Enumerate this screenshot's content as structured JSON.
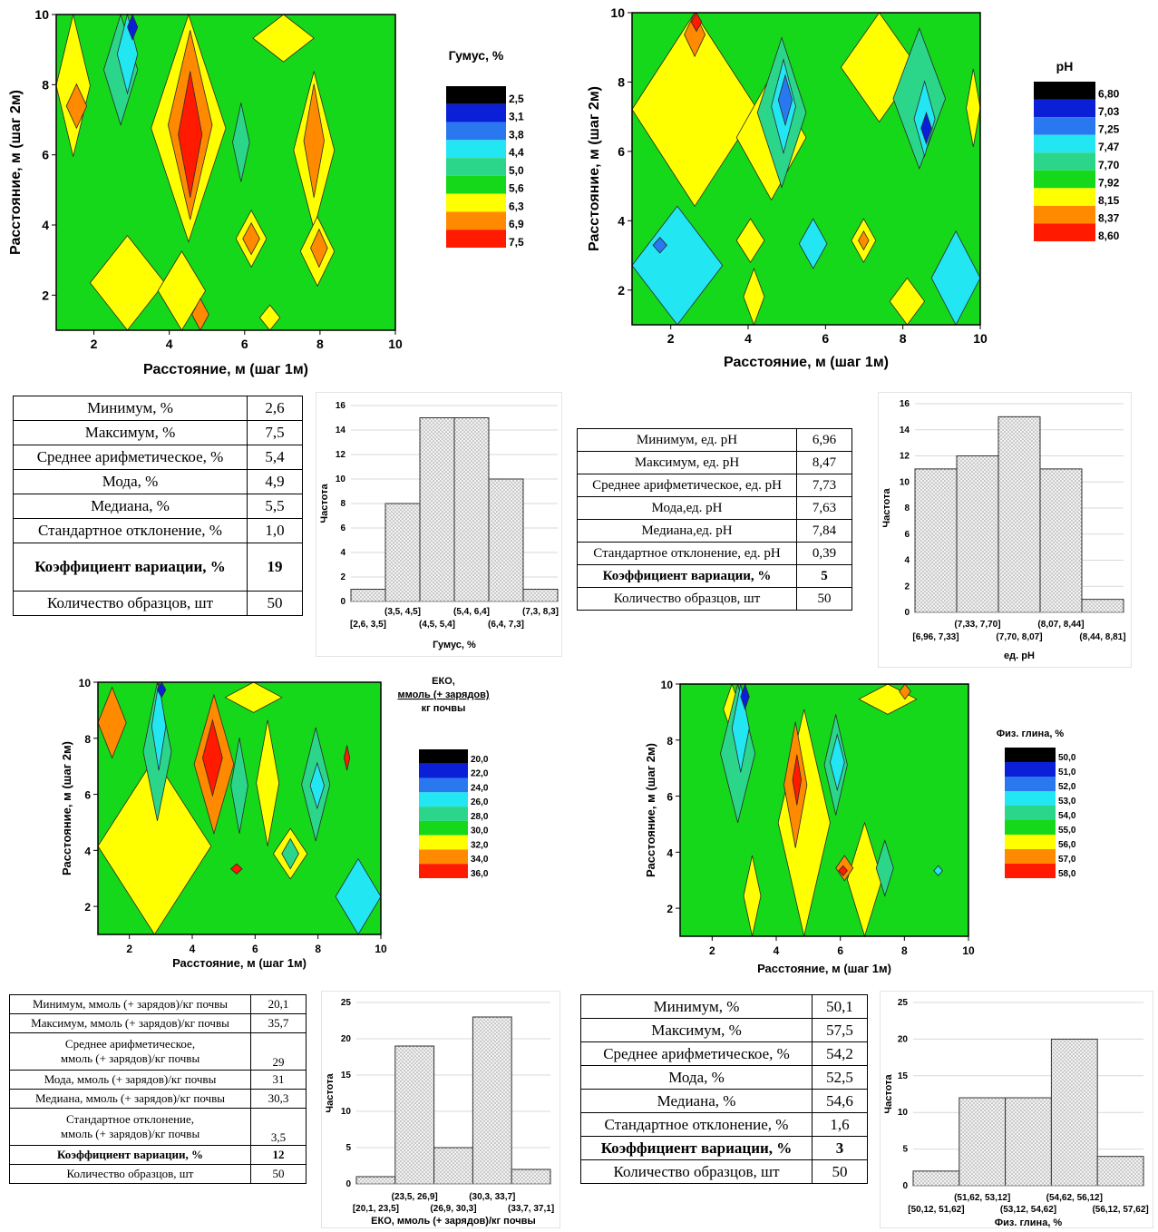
{
  "contours": [
    {
      "id": "humus",
      "xlabel": "Расстояние, м (шаг 1м)",
      "ylabel": "Расстояние, м (шаг 2м)",
      "xticks": [
        "2",
        "4",
        "6",
        "8",
        "10"
      ],
      "yticks": [
        "2",
        "4",
        "6",
        "8",
        "10"
      ],
      "legend_title": [
        "Гумус, %"
      ],
      "legend_levels": [
        "2,5",
        "3,1",
        "3,8",
        "4,4",
        "5,0",
        "5,6",
        "6,3",
        "6,9",
        "7,5"
      ]
    },
    {
      "id": "ph",
      "xlabel": "Расстояние, м (шаг 1м)",
      "ylabel": "Расстояние, м (шаг 2м)",
      "xticks": [
        "2",
        "4",
        "6",
        "8",
        "10"
      ],
      "yticks": [
        "2",
        "4",
        "6",
        "8",
        "10"
      ],
      "legend_title": [
        "pH"
      ],
      "legend_levels": [
        "6,80",
        "7,03",
        "7,25",
        "7,47",
        "7,70",
        "7,92",
        "8,15",
        "8,37",
        "8,60"
      ]
    },
    {
      "id": "eko",
      "xlabel": "Расстояние, м (шаг 1м)",
      "ylabel": "Расстояние, м (шаг 2м)",
      "xticks": [
        "2",
        "4",
        "6",
        "8",
        "10"
      ],
      "yticks": [
        "2",
        "4",
        "6",
        "8",
        "10"
      ],
      "legend_title": [
        "ЕКО,",
        "ммоль (+ зарядов)",
        "кг почвы"
      ],
      "legend_levels": [
        "20,0",
        "22,0",
        "24,0",
        "26,0",
        "28,0",
        "30,0",
        "32,0",
        "34,0",
        "36,0"
      ]
    },
    {
      "id": "clay",
      "xlabel": "Расстояние, м (шаг 1м)",
      "ylabel": "Расстояние, м (шаг 2м)",
      "xticks": [
        "2",
        "4",
        "6",
        "8",
        "10"
      ],
      "yticks": [
        "2",
        "4",
        "6",
        "8",
        "10"
      ],
      "legend_title": [
        "Физ. глина, %"
      ],
      "legend_levels": [
        "50,0",
        "51,0",
        "52,0",
        "53,0",
        "54,0",
        "55,0",
        "56,0",
        "57,0",
        "58,0"
      ]
    }
  ],
  "palette": [
    "#000000",
    "#0a1fd6",
    "#2a78f0",
    "#22e6f2",
    "#2bd68a",
    "#16d81a",
    "#ffff00",
    "#ff8a00",
    "#ff1a00"
  ],
  "stats": {
    "humus": [
      {
        "label": "Минимум, %",
        "value": "2,6"
      },
      {
        "label": "Максимум, %",
        "value": "7,5"
      },
      {
        "label": "Среднее арифметическое, %",
        "value": "5,4"
      },
      {
        "label": "Мода, %",
        "value": "4,9"
      },
      {
        "label": "Медиана, %",
        "value": "5,5"
      },
      {
        "label": "Стандартное отклонение, %",
        "value": "1,0"
      },
      {
        "label": "Коэффициент вариации, %",
        "value": "19"
      },
      {
        "label": "Количество образцов, шт",
        "value": "50"
      }
    ],
    "ph": [
      {
        "label": "Минимум, ед. pH",
        "value": "6,96"
      },
      {
        "label": "Максимум, ед. pH",
        "value": "8,47"
      },
      {
        "label": "Среднее арифметическое, ед. pH",
        "value": "7,73"
      },
      {
        "label": "Мода,ед. pH",
        "value": "7,63"
      },
      {
        "label": "Медиана,ед. pH",
        "value": "7,84"
      },
      {
        "label": "Стандартное отклонение, ед. pH",
        "value": "0,39"
      },
      {
        "label": "Коэффициент вариации, %",
        "value": "5"
      },
      {
        "label": "Количество образцов, шт",
        "value": "50"
      }
    ],
    "eko": [
      {
        "label": "Минимум, ммоль (+ зарядов)/кг почвы",
        "value": "20,1"
      },
      {
        "label": "Максимум, ммоль (+ зарядов)/кг почвы",
        "value": "35,7"
      },
      {
        "label": "Среднее арифметическое,|ммоль (+ зарядов)/кг почвы",
        "value": "29"
      },
      {
        "label": "Мода, ммоль (+ зарядов)/кг почвы",
        "value": "31"
      },
      {
        "label": "Медиана, ммоль (+ зарядов)/кг почвы",
        "value": "30,3"
      },
      {
        "label": "Стандартное отклонение,|ммоль (+ зарядов)/кг почвы",
        "value": "3,5"
      },
      {
        "label": "Коэффициент вариации, %",
        "value": "12"
      },
      {
        "label": "Количество образцов, шт",
        "value": "50"
      }
    ],
    "clay": [
      {
        "label": "Минимум, %",
        "value": "50,1"
      },
      {
        "label": "Максимум, %",
        "value": "57,5"
      },
      {
        "label": "Среднее арифметическое, %",
        "value": "54,2"
      },
      {
        "label": "Мода, %",
        "value": "52,5"
      },
      {
        "label": "Медиана, %",
        "value": "54,6"
      },
      {
        "label": "Стандартное отклонение, %",
        "value": "1,6"
      },
      {
        "label": "Коэффициент вариации, %",
        "value": "3"
      },
      {
        "label": "Количество образцов, шт",
        "value": "50"
      }
    ]
  },
  "chart_data": [
    {
      "type": "bar",
      "ylabel": "Частота",
      "xlabel": "Гумус, %",
      "ylim": [
        0,
        16
      ],
      "yticks": [
        0,
        2,
        4,
        6,
        8,
        10,
        12,
        14,
        16
      ],
      "categories": [
        "[2,6, 3,5]",
        "(3,5, 4,5]",
        "(4,5, 5,4]",
        "(5,4, 6,4]",
        "(6,4, 7,3]",
        "(7,3, 8,3]"
      ],
      "values": [
        1,
        8,
        15,
        15,
        10,
        1
      ]
    },
    {
      "type": "bar",
      "ylabel": "Частота",
      "xlabel": "ед. pH",
      "ylim": [
        0,
        16
      ],
      "yticks": [
        0,
        2,
        4,
        6,
        8,
        10,
        12,
        14,
        16
      ],
      "categories": [
        "[6,96, 7,33]",
        "(7,33, 7,70]",
        "(7,70, 8,07]",
        "(8,07, 8,44]",
        "(8,44, 8,81]"
      ],
      "values": [
        11,
        12,
        15,
        11,
        1
      ]
    },
    {
      "type": "bar",
      "ylabel": "Частота",
      "xlabel": "ЕКО, ммоль (+ зарядов)/кг почвы",
      "ylim": [
        0,
        25
      ],
      "yticks": [
        0,
        5,
        10,
        15,
        20,
        25
      ],
      "categories": [
        "[20,1, 23,5]",
        "(23,5, 26,9]",
        "(26,9, 30,3]",
        "(30,3, 33,7]",
        "(33,7, 37,1]"
      ],
      "values": [
        1,
        19,
        5,
        23,
        2
      ]
    },
    {
      "type": "bar",
      "ylabel": "Частота",
      "xlabel": "Физ. глина, %",
      "ylim": [
        0,
        25
      ],
      "yticks": [
        0,
        5,
        10,
        15,
        20,
        25
      ],
      "categories": [
        "[50,12, 51,62]",
        "(51,62, 53,12]",
        "(53,12, 54,62]",
        "(54,62, 56,12]",
        "(56,12, 57,62]"
      ],
      "values": [
        2,
        12,
        12,
        20,
        4
      ]
    }
  ]
}
